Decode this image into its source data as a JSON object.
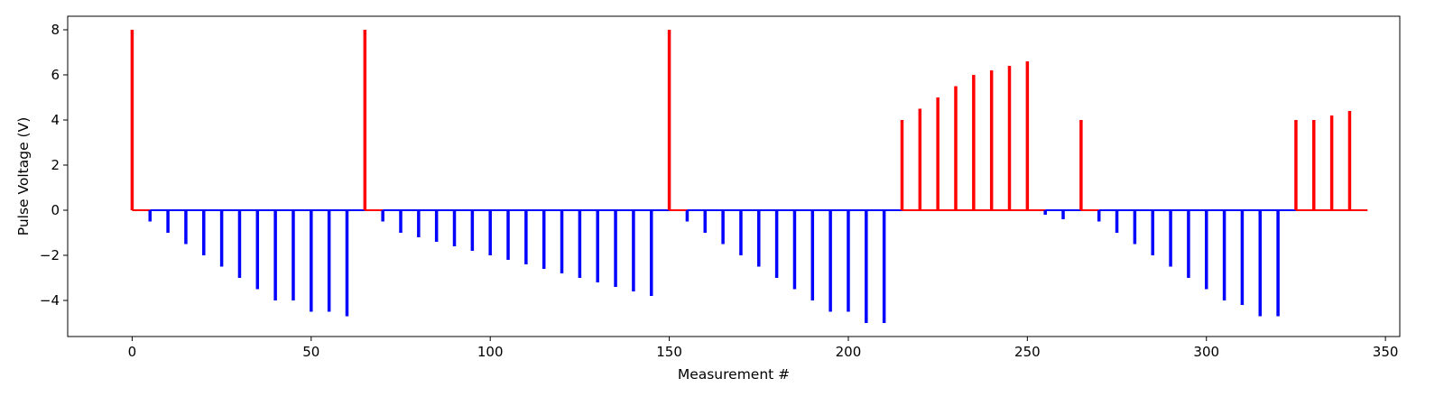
{
  "chart_data": {
    "type": "bar",
    "title": "",
    "xlabel": "Measurement #",
    "ylabel": "Pulse Voltage (V)",
    "xlim": [
      -18,
      354
    ],
    "ylim": [
      -5.6,
      8.6
    ],
    "xticks": [
      0,
      50,
      100,
      150,
      200,
      250,
      300,
      350
    ],
    "yticks": [
      -4,
      -2,
      0,
      2,
      4,
      6,
      8
    ],
    "grid": false,
    "legend": "none",
    "colors": {
      "positive": "#ff0000",
      "negative": "#0000ff"
    },
    "baseline": [
      {
        "from": 0,
        "to": 5,
        "color": "#ff0000"
      },
      {
        "from": 5,
        "to": 65,
        "color": "#0000ff"
      },
      {
        "from": 65,
        "to": 70,
        "color": "#ff0000"
      },
      {
        "from": 70,
        "to": 150,
        "color": "#0000ff"
      },
      {
        "from": 150,
        "to": 155,
        "color": "#ff0000"
      },
      {
        "from": 155,
        "to": 215,
        "color": "#0000ff"
      },
      {
        "from": 215,
        "to": 255,
        "color": "#ff0000"
      },
      {
        "from": 255,
        "to": 265,
        "color": "#0000ff"
      },
      {
        "from": 265,
        "to": 270,
        "color": "#ff0000"
      },
      {
        "from": 270,
        "to": 325,
        "color": "#0000ff"
      },
      {
        "from": 325,
        "to": 345,
        "color": "#ff0000"
      }
    ],
    "x": [
      0,
      5,
      10,
      15,
      20,
      25,
      30,
      35,
      40,
      45,
      50,
      55,
      60,
      65,
      70,
      75,
      80,
      85,
      90,
      95,
      100,
      105,
      110,
      115,
      120,
      125,
      130,
      135,
      140,
      145,
      150,
      155,
      160,
      165,
      170,
      175,
      180,
      185,
      190,
      195,
      200,
      205,
      210,
      215,
      220,
      225,
      230,
      235,
      240,
      245,
      250,
      255,
      260,
      265,
      270,
      275,
      280,
      285,
      290,
      295,
      300,
      305,
      310,
      315,
      320,
      325,
      330,
      335,
      340
    ],
    "values": [
      8,
      -0.5,
      -1.0,
      -1.5,
      -2.0,
      -2.5,
      -3.0,
      -3.5,
      -4.0,
      -4.0,
      -4.5,
      -4.5,
      -4.7,
      8,
      -0.5,
      -1.0,
      -1.2,
      -1.4,
      -1.6,
      -1.8,
      -2.0,
      -2.2,
      -2.4,
      -2.6,
      -2.8,
      -3.0,
      -3.2,
      -3.4,
      -3.6,
      -3.8,
      8,
      -0.5,
      -1.0,
      -1.5,
      -2.0,
      -2.5,
      -3.0,
      -3.5,
      -4.0,
      -4.5,
      -4.5,
      -5.0,
      -5.0,
      4.0,
      4.5,
      5.0,
      5.5,
      6.0,
      6.2,
      6.4,
      6.6,
      -0.2,
      -0.4,
      4.0,
      -0.5,
      -1.0,
      -1.5,
      -2.0,
      -2.5,
      -3.0,
      -3.5,
      -4.0,
      -4.2,
      -4.7,
      -4.7,
      4.0,
      4.0,
      4.2,
      4.4
    ]
  }
}
